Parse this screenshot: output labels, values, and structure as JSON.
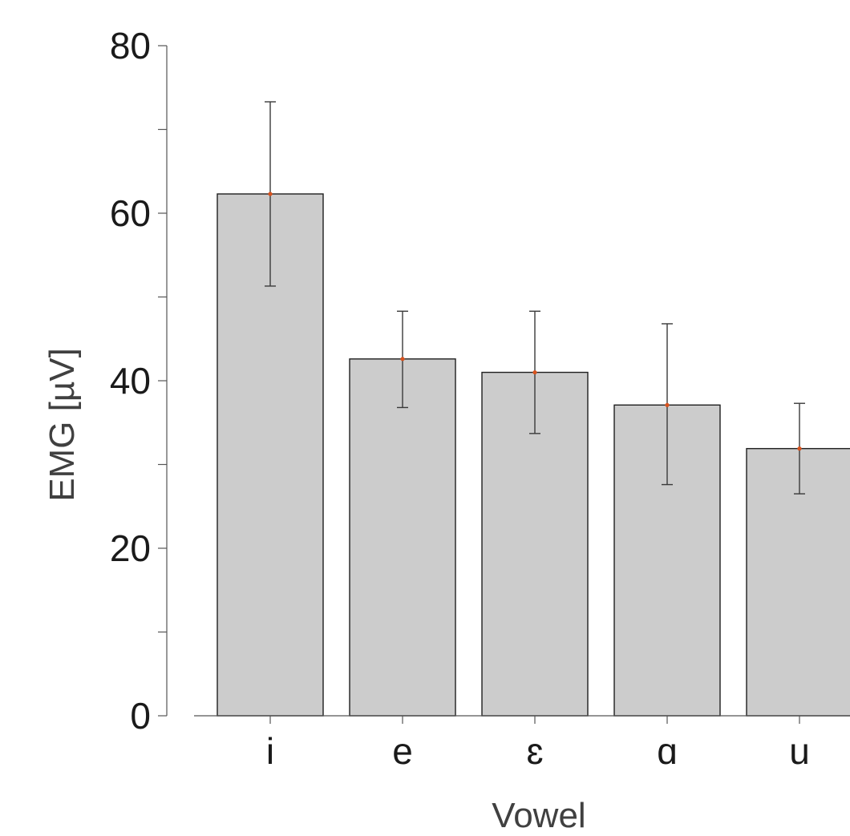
{
  "chart_data": {
    "type": "bar",
    "title": "",
    "xlabel": "Vowel",
    "ylabel": "EMG [µV]",
    "categories": [
      "i",
      "e",
      "ɛ",
      "ɑ",
      "u"
    ],
    "values": [
      62.3,
      42.6,
      41.0,
      37.1,
      31.9
    ],
    "error_upper": [
      73.3,
      48.3,
      48.3,
      46.8,
      37.3
    ],
    "error_lower": [
      51.3,
      36.8,
      33.7,
      27.6,
      26.5
    ],
    "ylim": [
      0,
      80
    ],
    "yticks_major": [
      0,
      20,
      40,
      60,
      80
    ],
    "yticks_minor": [
      10,
      30,
      50,
      70
    ],
    "grid": false,
    "legend": "none",
    "colors": {
      "bar_fill": "#cccccc",
      "bar_stroke": "#1f1f1f",
      "error_bar": "#3a3a3a",
      "mean_marker": "#d9531e",
      "axis": "#555555"
    }
  }
}
